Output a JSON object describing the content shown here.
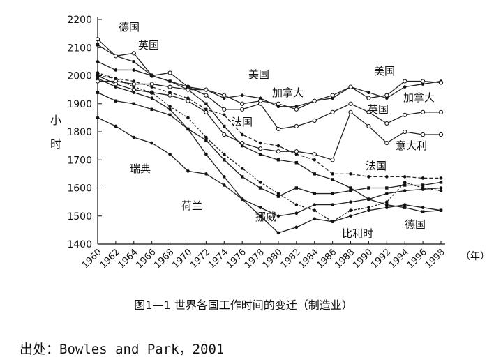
{
  "caption": "图1—1  世界各国工作时间的变迁（制造业）",
  "source": "出处：Bowles and Park，2001",
  "chart_data": {
    "type": "line",
    "ylabel": "小时",
    "xunit": "（年）",
    "ylim": [
      1400,
      2200
    ],
    "yticks": [
      1400,
      1500,
      1600,
      1700,
      1800,
      1900,
      2000,
      2100,
      2200
    ],
    "xlim": [
      1960,
      1998
    ],
    "xticks": [
      1960,
      1962,
      1964,
      1966,
      1968,
      1970,
      1972,
      1974,
      1976,
      1978,
      1980,
      1982,
      1984,
      1986,
      1988,
      1990,
      1992,
      1994,
      1996,
      1998
    ],
    "grid": false,
    "legend": "inline labels",
    "x": [
      1960,
      1962,
      1964,
      1966,
      1968,
      1970,
      1972,
      1974,
      1976,
      1978,
      1980,
      1982,
      1984,
      1986,
      1988,
      1990,
      1992,
      1994,
      1996,
      1998
    ],
    "series": [
      {
        "name": "德国",
        "values": [
          2110,
          2070,
          2050,
          2000,
          1980,
          1950,
          1900,
          1820,
          1750,
          1720,
          1700,
          1690,
          1650,
          1630,
          1600,
          1560,
          1540,
          1530,
          1515,
          1520
        ]
      },
      {
        "name": "英国",
        "values": [
          2130,
          2070,
          2080,
          2000,
          2010,
          1960,
          1930,
          1880,
          1880,
          1900,
          1810,
          1820,
          1840,
          1870,
          1900,
          1870,
          1830,
          1860,
          1870,
          1870
        ]
      },
      {
        "name": "美国",
        "values": [
          2050,
          2020,
          2020,
          2000,
          1980,
          1960,
          1950,
          1920,
          1930,
          1920,
          1890,
          1890,
          1910,
          1920,
          1960,
          1940,
          1920,
          1960,
          1970,
          1980
        ]
      },
      {
        "name": "加拿大",
        "values": [
          1980,
          1980,
          1970,
          1970,
          1960,
          1950,
          1950,
          1930,
          1900,
          1910,
          1900,
          1880,
          1910,
          1930,
          1960,
          1920,
          1930,
          1980,
          1980,
          1975
        ]
      },
      {
        "name": "意大利",
        "values": [
          2000,
          1970,
          1950,
          1940,
          1930,
          1910,
          1870,
          1790,
          1760,
          1740,
          1730,
          1730,
          1720,
          1700,
          1870,
          1820,
          1760,
          1800,
          1790,
          1790
        ]
      },
      {
        "name": "法国",
        "values": [
          2000,
          1990,
          1980,
          1960,
          1940,
          1920,
          1880,
          1860,
          1790,
          1760,
          1750,
          1720,
          1700,
          1650,
          1650,
          1640,
          1640,
          1640,
          1635,
          1635
        ]
      },
      {
        "name": "瑞典",
        "values": [
          1850,
          1820,
          1780,
          1760,
          1720,
          1660,
          1650,
          1610,
          1560,
          1530,
          1500,
          1510,
          1540,
          1540,
          1550,
          1560,
          1580,
          1590,
          1595,
          1600
        ]
      },
      {
        "name": "荷兰",
        "values": [
          1940,
          1910,
          1900,
          1880,
          1860,
          1810,
          1770,
          1700,
          1640,
          1600,
          1570,
          1600,
          1580,
          1580,
          1590,
          1600,
          1600,
          1610,
          1610,
          1620
        ]
      },
      {
        "name": "挪威",
        "values": [
          1990,
          1960,
          1940,
          1920,
          1880,
          1810,
          1720,
          1640,
          1560,
          1500,
          1440,
          1460,
          1490,
          1480,
          1500,
          1520,
          1530,
          1540,
          1530,
          1520
        ]
      },
      {
        "name": "比利时",
        "values": [
          2010,
          1990,
          1960,
          1940,
          1890,
          1850,
          1780,
          1720,
          1670,
          1620,
          1580,
          1540,
          1520,
          1480,
          1520,
          1530,
          1550,
          1620,
          1600,
          1590
        ]
      }
    ],
    "annotations": [
      "德国",
      "英国",
      "美国",
      "加拿大",
      "美国",
      "加拿大",
      "英国",
      "意大利",
      "法国",
      "法国",
      "瑞典",
      "荷兰",
      "挪威",
      "比利时",
      "德国"
    ]
  }
}
